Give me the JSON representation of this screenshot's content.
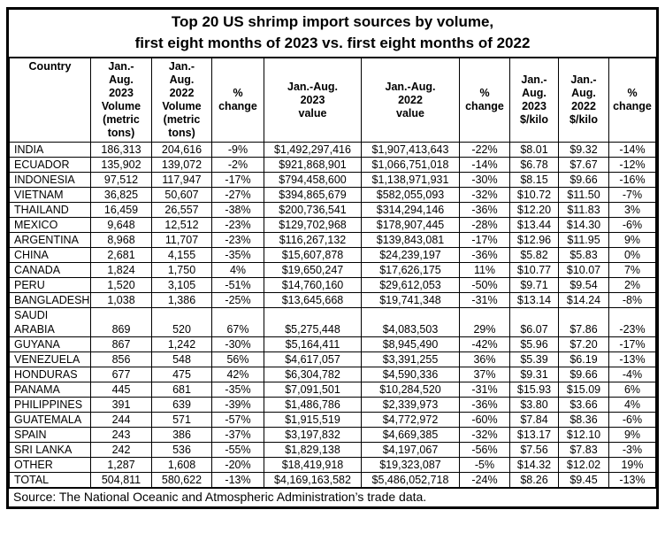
{
  "title": "Top 20 US shrimp import sources by volume,\nfirst eight months of 2023 vs. first eight months of 2022",
  "table": {
    "columns": [
      "Country",
      "Jan.-\nAug.\n2023\nVolume\n(metric\ntons)",
      "Jan.-\nAug.\n2022\nVolume\n(metric\ntons)",
      "%\nchange",
      "Jan.-Aug.\n2023\nvalue",
      "Jan.-Aug.\n2022\nvalue",
      "%\nchange",
      "Jan.-\nAug.\n2023\n$/kilo",
      "Jan.-\nAug.\n2022\n$/kilo",
      "%\nchange"
    ],
    "rows": [
      [
        "INDIA",
        "186,313",
        "204,616",
        "-9%",
        "$1,492,297,416",
        "$1,907,413,643",
        "-22%",
        "$8.01",
        "$9.32",
        "-14%"
      ],
      [
        "ECUADOR",
        "135,902",
        "139,072",
        "-2%",
        "$921,868,901",
        "$1,066,751,018",
        "-14%",
        "$6.78",
        "$7.67",
        "-12%"
      ],
      [
        "INDONESIA",
        "97,512",
        "117,947",
        "-17%",
        "$794,458,600",
        "$1,138,971,931",
        "-30%",
        "$8.15",
        "$9.66",
        "-16%"
      ],
      [
        "VIETNAM",
        "36,825",
        "50,607",
        "-27%",
        "$394,865,679",
        "$582,055,093",
        "-32%",
        "$10.72",
        "$11.50",
        "-7%"
      ],
      [
        "THAILAND",
        "16,459",
        "26,557",
        "-38%",
        "$200,736,541",
        "$314,294,146",
        "-36%",
        "$12.20",
        "$11.83",
        "3%"
      ],
      [
        "MEXICO",
        "9,648",
        "12,512",
        "-23%",
        "$129,702,968",
        "$178,907,445",
        "-28%",
        "$13.44",
        "$14.30",
        "-6%"
      ],
      [
        "ARGENTINA",
        "8,968",
        "11,707",
        "-23%",
        "$116,267,132",
        "$139,843,081",
        "-17%",
        "$12.96",
        "$11.95",
        "9%"
      ],
      [
        "CHINA",
        "2,681",
        "4,155",
        "-35%",
        "$15,607,878",
        "$24,239,197",
        "-36%",
        "$5.82",
        "$5.83",
        "0%"
      ],
      [
        "CANADA",
        "1,824",
        "1,750",
        "4%",
        "$19,650,247",
        "$17,626,175",
        "11%",
        "$10.77",
        "$10.07",
        "7%"
      ],
      [
        "PERU",
        "1,520",
        "3,105",
        "-51%",
        "$14,760,160",
        "$29,612,053",
        "-50%",
        "$9.71",
        "$9.54",
        "2%"
      ],
      [
        "BANGLADESH",
        "1,038",
        "1,386",
        "-25%",
        "$13,645,668",
        "$19,741,348",
        "-31%",
        "$13.14",
        "$14.24",
        "-8%"
      ],
      [
        "SAUDI\nARABIA",
        "869",
        "520",
        "67%",
        "$5,275,448",
        "$4,083,503",
        "29%",
        "$6.07",
        "$7.86",
        "-23%"
      ],
      [
        "GUYANA",
        "867",
        "1,242",
        "-30%",
        "$5,164,411",
        "$8,945,490",
        "-42%",
        "$5.96",
        "$7.20",
        "-17%"
      ],
      [
        "VENEZUELA",
        "856",
        "548",
        "56%",
        "$4,617,057",
        "$3,391,255",
        "36%",
        "$5.39",
        "$6.19",
        "-13%"
      ],
      [
        "HONDURAS",
        "677",
        "475",
        "42%",
        "$6,304,782",
        "$4,590,336",
        "37%",
        "$9.31",
        "$9.66",
        "-4%"
      ],
      [
        "PANAMA",
        "445",
        "681",
        "-35%",
        "$7,091,501",
        "$10,284,520",
        "-31%",
        "$15.93",
        "$15.09",
        "6%"
      ],
      [
        "PHILIPPINES",
        "391",
        "639",
        "-39%",
        "$1,486,786",
        "$2,339,973",
        "-36%",
        "$3.80",
        "$3.66",
        "4%"
      ],
      [
        "GUATEMALA",
        "244",
        "571",
        "-57%",
        "$1,915,519",
        "$4,772,972",
        "-60%",
        "$7.84",
        "$8.36",
        "-6%"
      ],
      [
        "SPAIN",
        "243",
        "386",
        "-37%",
        "$3,197,832",
        "$4,669,385",
        "-32%",
        "$13.17",
        "$12.10",
        "9%"
      ],
      [
        "SRI LANKA",
        "242",
        "536",
        "-55%",
        "$1,829,138",
        "$4,197,067",
        "-56%",
        "$7.56",
        "$7.83",
        "-3%"
      ],
      [
        "OTHER",
        "1,287",
        "1,608",
        "-20%",
        "$18,419,918",
        "$19,323,087",
        "-5%",
        "$14.32",
        "$12.02",
        "19%"
      ],
      [
        "TOTAL",
        "504,811",
        "580,622",
        "-13%",
        "$4,169,163,582",
        "$5,486,052,718",
        "-24%",
        "$8.26",
        "$9.45",
        "-13%"
      ]
    ]
  },
  "source": "Source: The National Oceanic and Atmospheric Administration’s trade data."
}
